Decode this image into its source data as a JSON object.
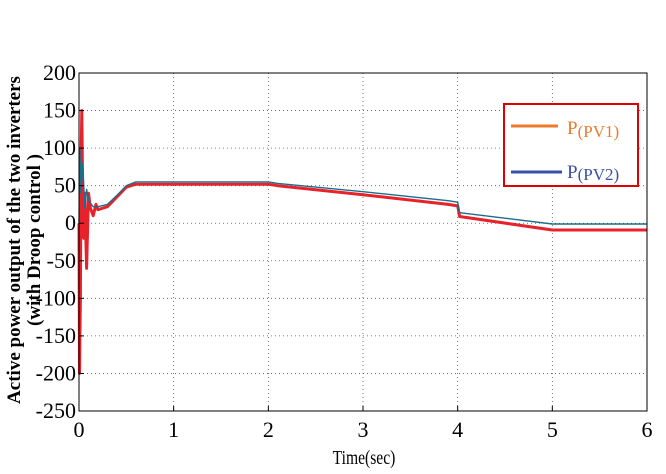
{
  "chart_data": {
    "type": "line",
    "xlabel": "Time(sec)",
    "ylabel": "Active power output of the two inverters",
    "ylabel_line2": "(with Droop control )",
    "xlim": [
      0,
      6
    ],
    "ylim": [
      -250,
      200
    ],
    "x_ticks": [
      "0",
      "1",
      "2",
      "3",
      "4",
      "5",
      "6"
    ],
    "y_ticks": [
      "200",
      "150",
      "100",
      "50",
      "0",
      "-50",
      "-100",
      "-150",
      "-200",
      "-250"
    ],
    "grid": true,
    "legend_position": "top-right",
    "series": [
      {
        "name": "P(PV1)",
        "legend_main": "P",
        "legend_sub": "(PV1)",
        "color": "#e8222b",
        "legend_color": "#ee7b2c",
        "x": [
          0,
          0.005,
          0.01,
          0.015,
          0.02,
          0.03,
          0.04,
          0.05,
          0.06,
          0.08,
          0.1,
          0.12,
          0.15,
          0.18,
          0.2,
          0.25,
          0.3,
          0.4,
          0.5,
          0.6,
          1.0,
          2.0,
          2.1,
          3.0,
          3.9,
          4.0,
          4.02,
          5.0,
          6.0
        ],
        "y": [
          0,
          -200,
          -150,
          -100,
          60,
          150,
          20,
          -20,
          40,
          -60,
          40,
          20,
          10,
          25,
          18,
          20,
          22,
          35,
          48,
          52,
          52,
          52,
          50,
          38,
          25,
          23,
          9,
          -9,
          -9
        ]
      },
      {
        "name": "P(PV2)",
        "legend_main": "P",
        "legend_sub": "(PV2)",
        "color": "#1a6e8c",
        "legend_color": "#3a4fa8",
        "x": [
          0,
          0.01,
          0.02,
          0.04,
          0.06,
          0.08,
          0.1,
          0.15,
          0.2,
          0.3,
          0.4,
          0.5,
          0.6,
          1.0,
          2.0,
          2.1,
          3.0,
          3.9,
          4.0,
          4.02,
          5.0,
          6.0
        ],
        "y": [
          0,
          100,
          40,
          80,
          20,
          45,
          30,
          22,
          22,
          25,
          37,
          50,
          55,
          55,
          55,
          53,
          42,
          30,
          28,
          14,
          -1,
          -1
        ]
      }
    ]
  }
}
